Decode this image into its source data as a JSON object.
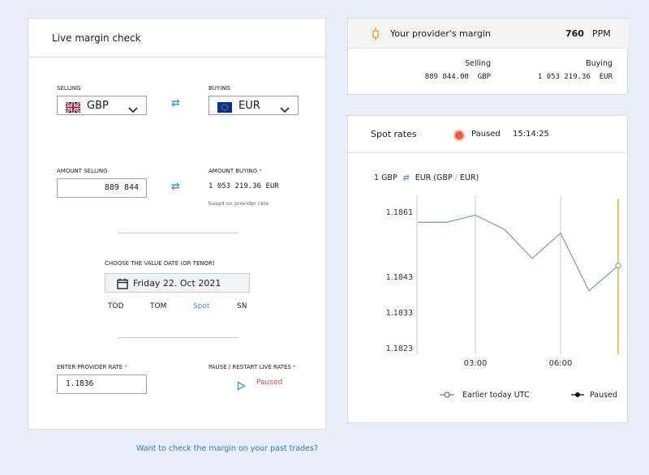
{
  "left": {
    "title": "Live margin check",
    "selling_label": "SELLING",
    "buying_label": "BUYING",
    "sell_currency": "GBP",
    "buy_currency": "EUR",
    "amount_selling_label": "AMOUNT SELLING",
    "amount_buying_label": "AMOUNT BUYING",
    "amount_selling_value": "889 844",
    "amount_buying_value": "1 053 219.36 EUR",
    "based_on": "based on provider rate",
    "value_date_label": "CHOOSE THE VALUE DATE (OR TENOR)",
    "value_date": "Friday 22. Oct 2021",
    "tenors": [
      "TOD",
      "TOM",
      "Spot",
      "SN"
    ],
    "active_tenor": "Spot",
    "provider_rate_label": "ENTER PROVIDER RATE",
    "provider_rate_value": "1.1836",
    "pause_label": "PAUSE / RESTART LIVE RATES",
    "paused_text": "Paused",
    "required_mark": "*"
  },
  "provider": {
    "title": "Your provider's margin",
    "margin_value": "760",
    "margin_unit": "PPM",
    "selling_label": "Selling",
    "buying_label": "Buying",
    "selling_value": "889 844.00  GBP",
    "buying_value": "1 053 219.36  EUR"
  },
  "spot": {
    "title": "Spot rates",
    "status": "Paused",
    "time": "15:14:25",
    "pair_prefix": "1 GBP",
    "pair_eur": "EUR",
    "pair_open": "(GBP",
    "pair_slash": "/",
    "pair_close": "EUR)"
  },
  "chart_data": {
    "type": "line",
    "y_ticks": [
      "1.1861",
      "1.1843",
      "1.1833",
      "1.1823"
    ],
    "x_ticks": [
      "03:00",
      "06:00"
    ],
    "series": [
      {
        "name": "Earlier today UTC",
        "x": [
          "01:00",
          "02:00",
          "03:00",
          "04:00",
          "05:00",
          "06:00",
          "07:00",
          "08:00"
        ],
        "values": [
          1.1858,
          1.1858,
          1.186,
          1.1856,
          1.1848,
          1.1855,
          1.1839,
          1.1846
        ]
      }
    ],
    "legend": [
      "Earlier today UTC",
      "Paused"
    ],
    "legend_position": "bottom",
    "marker_color": "#f0b429",
    "line_color": "#7fa8a2"
  },
  "footer": {
    "link": "Want to check the margin on your past trades?"
  },
  "colors": {
    "accent": "#3b9bd4",
    "paused": "#f05a3c",
    "background": "#e8eef8"
  }
}
